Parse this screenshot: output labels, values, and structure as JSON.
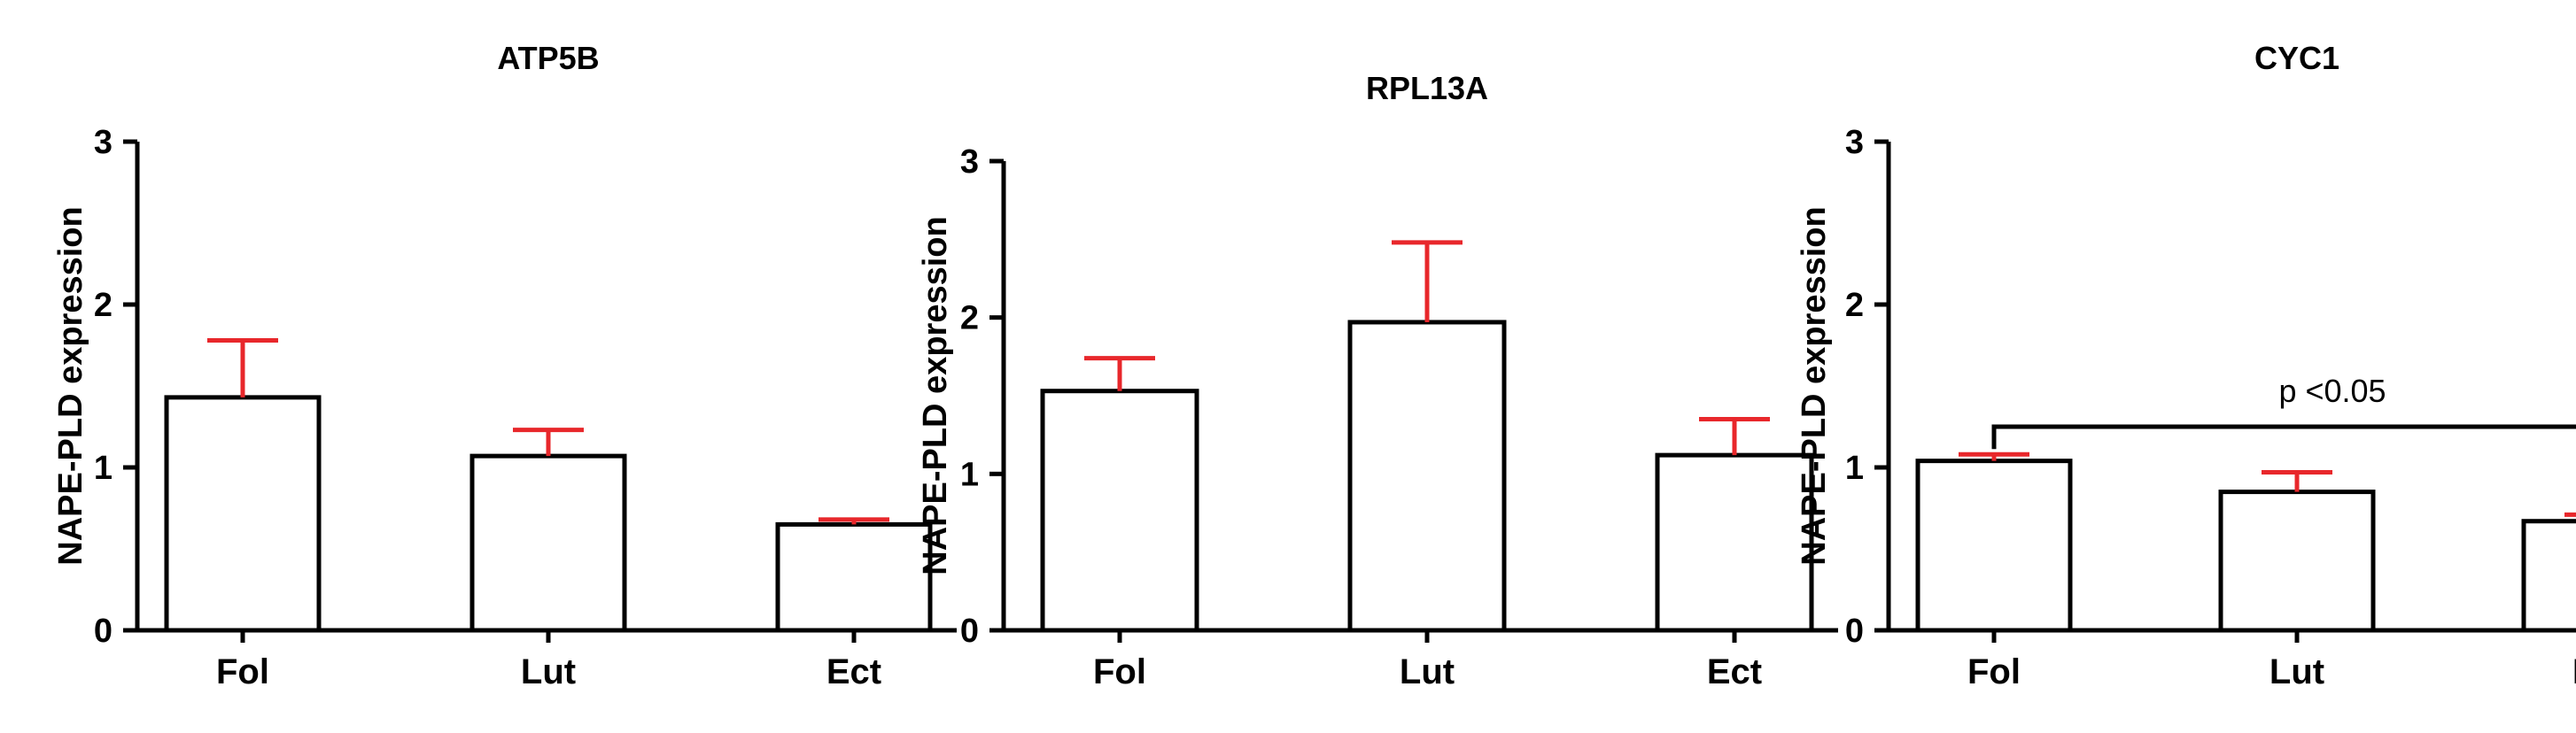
{
  "chart_data": [
    {
      "type": "bar",
      "title": "ATP5B",
      "ylabel": "NAPE-PLD expression",
      "xlabel": "",
      "categories": [
        "Fol",
        "Lut",
        "Ect"
      ],
      "values": [
        1.43,
        1.07,
        0.65
      ],
      "errors": [
        0.35,
        0.16,
        0.03
      ],
      "ylim": [
        0,
        3
      ],
      "yticks": [
        "0",
        "1",
        "2",
        "3"
      ],
      "grid": false,
      "annotation": null
    },
    {
      "type": "bar",
      "title": "RPL13A",
      "ylabel": "NAPE-PLD expression",
      "xlabel": "",
      "categories": [
        "Fol",
        "Lut",
        "Ect"
      ],
      "values": [
        1.53,
        1.97,
        1.12
      ],
      "errors": [
        0.21,
        0.51,
        0.23
      ],
      "ylim": [
        0,
        3
      ],
      "yticks": [
        "0",
        "1",
        "2",
        "3"
      ],
      "grid": false,
      "annotation": null
    },
    {
      "type": "bar",
      "title": "CYC1",
      "ylabel": "NAPE-PLD expression",
      "xlabel": "",
      "categories": [
        "Fol",
        "Lut",
        "Ect"
      ],
      "values": [
        1.04,
        0.85,
        0.67
      ],
      "errors": [
        0.04,
        0.12,
        0.04
      ],
      "ylim": [
        0,
        3
      ],
      "yticks": [
        "0",
        "1",
        "2",
        "3"
      ],
      "grid": false,
      "annotation": {
        "text": "p <0.05",
        "from": 0,
        "to": 2,
        "level": 1.25
      }
    }
  ],
  "style": {
    "bar_fill": "#ffffff",
    "bar_stroke": "#000000",
    "error_color": "#e8272b",
    "axis_color": "#000000"
  }
}
